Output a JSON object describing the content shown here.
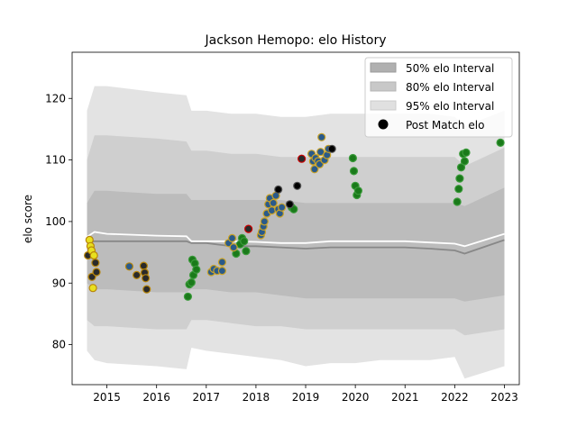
{
  "chart_data": {
    "type": "scatter",
    "title": "Jackson Hemopo: elo History",
    "xlabel": "",
    "ylabel": "elo score",
    "xlim": [
      2014.3,
      2023.3
    ],
    "ylim": [
      73.5,
      127.5
    ],
    "xticks": [
      2015,
      2016,
      2017,
      2018,
      2019,
      2020,
      2021,
      2022,
      2023
    ],
    "yticks": [
      80,
      90,
      100,
      110,
      120
    ],
    "legend_position": "top-right",
    "legend": [
      {
        "label": "50% elo Interval",
        "kind": "band",
        "color": "#b0b0b0"
      },
      {
        "label": "80% elo Interval",
        "kind": "band",
        "color": "#c8c8c8"
      },
      {
        "label": "95% elo Interval",
        "kind": "band",
        "color": "#e0e0e0"
      },
      {
        "label": "Post Match elo",
        "kind": "marker",
        "color": "#000000"
      }
    ],
    "bands": {
      "x": [
        2014.6,
        2014.75,
        2015.0,
        2016.0,
        2016.6,
        2016.7,
        2017.0,
        2017.5,
        2018.0,
        2018.5,
        2019.0,
        2019.5,
        2020.0,
        2020.5,
        2021.0,
        2021.5,
        2022.0,
        2022.2,
        2023.0
      ],
      "band95_lo": [
        79.0,
        77.5,
        77.0,
        76.5,
        76.0,
        79.5,
        79.0,
        78.5,
        78.0,
        77.5,
        76.5,
        77.0,
        77.0,
        77.5,
        77.5,
        77.5,
        78.0,
        74.5,
        76.5
      ],
      "band95_hi": [
        118.0,
        122.0,
        122.0,
        121.0,
        120.5,
        118.0,
        118.0,
        117.5,
        117.5,
        117.0,
        117.0,
        117.5,
        117.5,
        117.5,
        117.5,
        117.5,
        117.0,
        115.5,
        118.0
      ],
      "band80_lo": [
        84.0,
        83.0,
        83.0,
        82.5,
        82.5,
        84.0,
        84.0,
        83.5,
        83.0,
        83.0,
        82.5,
        82.5,
        82.5,
        82.5,
        82.5,
        82.5,
        82.5,
        81.5,
        82.5
      ],
      "band80_hi": [
        110.0,
        114.0,
        114.0,
        113.5,
        113.0,
        111.5,
        111.5,
        111.0,
        111.0,
        110.5,
        110.5,
        110.5,
        110.5,
        110.5,
        110.5,
        110.5,
        110.5,
        109.0,
        112.0
      ],
      "band50_lo": [
        90.0,
        89.0,
        89.0,
        88.5,
        88.5,
        89.0,
        89.0,
        88.5,
        88.5,
        88.0,
        87.5,
        87.5,
        87.5,
        87.5,
        87.5,
        87.5,
        87.5,
        87.0,
        88.0
      ],
      "band50_hi": [
        103.0,
        105.0,
        105.0,
        104.5,
        104.5,
        103.5,
        103.5,
        103.5,
        103.5,
        103.5,
        103.0,
        103.0,
        103.0,
        103.0,
        103.0,
        103.0,
        103.0,
        102.5,
        105.5
      ],
      "median": [
        96.5,
        96.8,
        96.8,
        96.8,
        96.8,
        96.5,
        96.5,
        96.0,
        96.0,
        95.8,
        95.6,
        95.8,
        95.8,
        95.8,
        95.8,
        95.6,
        95.3,
        94.8,
        97.0
      ],
      "mean": [
        97.5,
        98.3,
        98.0,
        97.7,
        97.6,
        96.8,
        96.8,
        96.8,
        96.7,
        96.5,
        96.5,
        96.8,
        96.8,
        96.8,
        96.8,
        96.6,
        96.4,
        96.0,
        98.0
      ]
    },
    "series": [
      {
        "name": "",
        "edge": "#b8860b",
        "points": [
          {
            "x": 2014.62,
            "y": 94.5,
            "fill": "#2a2a2a"
          },
          {
            "x": 2014.65,
            "y": 97.0,
            "fill": "#e8e020"
          },
          {
            "x": 2014.67,
            "y": 96.0,
            "fill": "#e8e020"
          },
          {
            "x": 2014.69,
            "y": 95.3,
            "fill": "#e8e020"
          },
          {
            "x": 2014.7,
            "y": 91.0,
            "fill": "#2a2a2a"
          },
          {
            "x": 2014.72,
            "y": 89.2,
            "fill": "#e8e020"
          },
          {
            "x": 2014.74,
            "y": 94.5,
            "fill": "#e8e020"
          },
          {
            "x": 2014.77,
            "y": 93.3,
            "fill": "#2a2a2a"
          },
          {
            "x": 2014.79,
            "y": 91.8,
            "fill": "#2a2a2a"
          },
          {
            "x": 2015.45,
            "y": 92.7,
            "fill": "#2a5a8a"
          },
          {
            "x": 2015.6,
            "y": 91.3,
            "fill": "#2a2a2a"
          },
          {
            "x": 2015.74,
            "y": 92.8,
            "fill": "#2a2a2a"
          },
          {
            "x": 2015.76,
            "y": 91.7,
            "fill": "#2a2a2a"
          },
          {
            "x": 2015.78,
            "y": 90.8,
            "fill": "#2a2a2a"
          },
          {
            "x": 2015.8,
            "y": 89.0,
            "fill": "#2a2a2a"
          }
        ]
      },
      {
        "name": "",
        "edge": "#3a9a3a",
        "points": [
          {
            "x": 2016.63,
            "y": 87.8,
            "fill": "#1a7a1a"
          },
          {
            "x": 2016.66,
            "y": 89.8,
            "fill": "#1a7a1a"
          },
          {
            "x": 2016.7,
            "y": 90.1,
            "fill": "#1a7a1a"
          },
          {
            "x": 2016.72,
            "y": 93.8,
            "fill": "#1a7a1a"
          },
          {
            "x": 2016.74,
            "y": 91.3,
            "fill": "#1a7a1a"
          },
          {
            "x": 2016.77,
            "y": 93.2,
            "fill": "#1a7a1a"
          },
          {
            "x": 2016.8,
            "y": 92.2,
            "fill": "#1a7a1a"
          },
          {
            "x": 2017.6,
            "y": 94.8,
            "fill": "#1a7a1a"
          },
          {
            "x": 2017.68,
            "y": 96.3,
            "fill": "#1a7a1a"
          },
          {
            "x": 2017.72,
            "y": 97.3,
            "fill": "#1a7a1a"
          },
          {
            "x": 2017.76,
            "y": 96.8,
            "fill": "#1a7a1a"
          },
          {
            "x": 2017.8,
            "y": 95.2,
            "fill": "#1a7a1a"
          },
          {
            "x": 2018.72,
            "y": 102.3,
            "fill": "#1a7a1a"
          },
          {
            "x": 2018.76,
            "y": 102.0,
            "fill": "#1a7a1a"
          }
        ]
      },
      {
        "name": "",
        "edge": "#c9a227",
        "points": [
          {
            "x": 2017.1,
            "y": 91.8,
            "fill": "#2a5a8a"
          },
          {
            "x": 2017.15,
            "y": 92.3,
            "fill": "#2a5a8a"
          },
          {
            "x": 2017.22,
            "y": 92.0,
            "fill": "#2a5a8a"
          },
          {
            "x": 2017.32,
            "y": 93.4,
            "fill": "#2a5a8a"
          },
          {
            "x": 2017.32,
            "y": 92.0,
            "fill": "#2a5a8a"
          },
          {
            "x": 2017.45,
            "y": 96.5,
            "fill": "#2a5a8a"
          },
          {
            "x": 2017.52,
            "y": 97.3,
            "fill": "#2a5a8a"
          },
          {
            "x": 2017.55,
            "y": 95.8,
            "fill": "#2a5a8a"
          },
          {
            "x": 2018.1,
            "y": 97.8,
            "fill": "#2a5a8a"
          },
          {
            "x": 2018.12,
            "y": 98.3,
            "fill": "#2a5a8a"
          },
          {
            "x": 2018.15,
            "y": 99.2,
            "fill": "#2a5a8a"
          },
          {
            "x": 2018.17,
            "y": 100.0,
            "fill": "#2a5a8a"
          },
          {
            "x": 2018.22,
            "y": 101.3,
            "fill": "#2a5a8a"
          },
          {
            "x": 2018.25,
            "y": 102.8,
            "fill": "#2a5a8a"
          },
          {
            "x": 2018.28,
            "y": 103.8,
            "fill": "#2a5a8a"
          },
          {
            "x": 2018.32,
            "y": 101.8,
            "fill": "#2a5a8a"
          },
          {
            "x": 2018.35,
            "y": 103.0,
            "fill": "#2a5a8a"
          },
          {
            "x": 2018.4,
            "y": 104.2,
            "fill": "#2a5a8a"
          },
          {
            "x": 2018.45,
            "y": 102.0,
            "fill": "#2a5a8a"
          },
          {
            "x": 2018.48,
            "y": 101.3,
            "fill": "#2a5a8a"
          },
          {
            "x": 2018.52,
            "y": 102.3,
            "fill": "#2a5a8a"
          },
          {
            "x": 2019.12,
            "y": 111.0,
            "fill": "#2a5a8a"
          },
          {
            "x": 2019.15,
            "y": 109.8,
            "fill": "#2a5a8a"
          },
          {
            "x": 2019.18,
            "y": 108.5,
            "fill": "#2a5a8a"
          },
          {
            "x": 2019.2,
            "y": 110.3,
            "fill": "#2a5a8a"
          },
          {
            "x": 2019.25,
            "y": 109.8,
            "fill": "#2a5a8a"
          },
          {
            "x": 2019.28,
            "y": 109.3,
            "fill": "#2a5a8a"
          },
          {
            "x": 2019.3,
            "y": 111.3,
            "fill": "#2a5a8a"
          },
          {
            "x": 2019.32,
            "y": 113.7,
            "fill": "#2a5a8a"
          },
          {
            "x": 2019.38,
            "y": 110.0,
            "fill": "#2a5a8a"
          },
          {
            "x": 2019.43,
            "y": 110.8,
            "fill": "#2a5a8a"
          },
          {
            "x": 2019.46,
            "y": 111.8,
            "fill": "#2a5a8a"
          }
        ]
      },
      {
        "name": "",
        "edge": "#cc0000",
        "points": [
          {
            "x": 2017.85,
            "y": 98.8,
            "fill": "#2a2a2a"
          },
          {
            "x": 2018.92,
            "y": 110.2,
            "fill": "#2a2a2a"
          }
        ]
      },
      {
        "name": "",
        "edge": "#555555",
        "points": [
          {
            "x": 2018.45,
            "y": 105.2,
            "fill": "#000000"
          },
          {
            "x": 2018.68,
            "y": 102.8,
            "fill": "#000000"
          },
          {
            "x": 2018.83,
            "y": 105.8,
            "fill": "#000000"
          },
          {
            "x": 2019.53,
            "y": 111.8,
            "fill": "#000000"
          }
        ]
      },
      {
        "name": "",
        "edge": "#3a9a3a",
        "points": [
          {
            "x": 2019.95,
            "y": 110.3,
            "fill": "#1a7a1a"
          },
          {
            "x": 2019.97,
            "y": 108.2,
            "fill": "#1a7a1a"
          },
          {
            "x": 2020.0,
            "y": 105.8,
            "fill": "#1a7a1a"
          },
          {
            "x": 2020.03,
            "y": 104.3,
            "fill": "#1a7a1a"
          },
          {
            "x": 2020.06,
            "y": 105.0,
            "fill": "#1a7a1a"
          },
          {
            "x": 2022.05,
            "y": 103.2,
            "fill": "#1a7a1a"
          },
          {
            "x": 2022.08,
            "y": 105.3,
            "fill": "#1a7a1a"
          },
          {
            "x": 2022.1,
            "y": 107.0,
            "fill": "#1a7a1a"
          },
          {
            "x": 2022.13,
            "y": 108.8,
            "fill": "#1a7a1a"
          },
          {
            "x": 2022.17,
            "y": 111.0,
            "fill": "#1a7a1a"
          },
          {
            "x": 2022.2,
            "y": 109.8,
            "fill": "#1a7a1a"
          },
          {
            "x": 2022.23,
            "y": 111.2,
            "fill": "#1a7a1a"
          },
          {
            "x": 2022.92,
            "y": 112.8,
            "fill": "#1a7a1a"
          }
        ]
      }
    ]
  }
}
